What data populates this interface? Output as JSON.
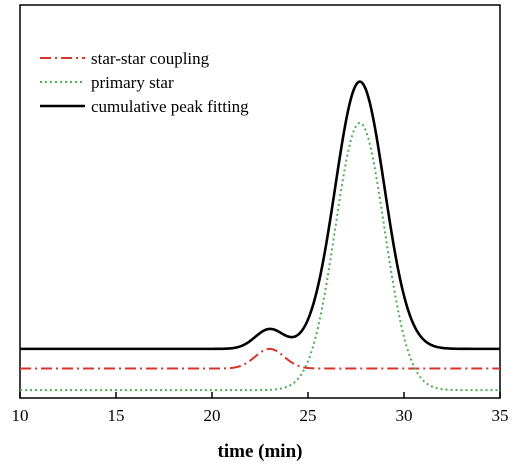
{
  "chart_data": {
    "type": "line",
    "title": "",
    "xlabel": "time (min)",
    "ylabel": "",
    "xlim": [
      10,
      35
    ],
    "xticks": [
      10,
      15,
      20,
      25,
      30,
      35
    ],
    "ylim": [
      0,
      1
    ],
    "y_ticks_shown": false,
    "grid": false,
    "legend_position": "top-left",
    "series": [
      {
        "name": "star-star coupling",
        "style": "dash-dot",
        "color": "#d9342b",
        "model": {
          "baseline": 0.075,
          "peak_center": 23.0,
          "peak_height": 0.05,
          "peak_sigma": 0.75
        }
      },
      {
        "name": "primary star",
        "style": "dotted",
        "color": "#4caf50",
        "model": {
          "baseline": 0.02,
          "peak_center": 27.7,
          "peak_height": 0.68,
          "peak_sigma": 1.28
        }
      },
      {
        "name": "cumulative peak fitting",
        "style": "solid",
        "color": "#000000",
        "model": {
          "baseline": 0.125,
          "peaks": [
            {
              "center": 23.0,
              "height": 0.05,
              "sigma": 0.75
            },
            {
              "center": 27.7,
              "height": 0.68,
              "sigma": 1.28
            }
          ]
        }
      }
    ]
  }
}
